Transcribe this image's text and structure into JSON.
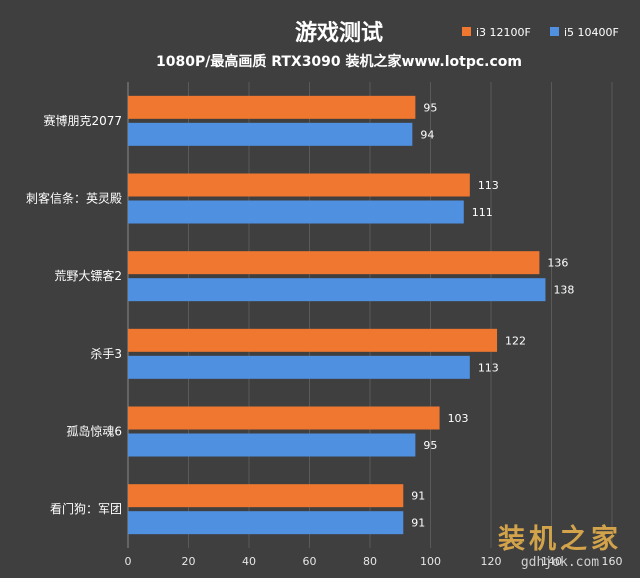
{
  "chart_data": {
    "type": "bar",
    "orientation": "horizontal",
    "title": "游戏测试",
    "subtitle": "1080P/最高画质 RTX3090 装机之家www.lotpc.com",
    "categories": [
      "赛博朋克2077",
      "刺客信条：英灵殿",
      "荒野大镖客2",
      "杀手3",
      "孤岛惊魂6",
      "看门狗：军团"
    ],
    "series": [
      {
        "name": "i3 12100F",
        "color": "#f0772f",
        "values": [
          95,
          113,
          136,
          122,
          103,
          91
        ]
      },
      {
        "name": "i5 10400F",
        "color": "#4f90e0",
        "values": [
          94,
          111,
          138,
          113,
          95,
          91
        ]
      }
    ],
    "xlim": [
      0,
      160
    ],
    "xticks": [
      0,
      20,
      40,
      60,
      80,
      100,
      120,
      140,
      160
    ],
    "grid": true,
    "legend": "top-right"
  },
  "watermark": {
    "text": "装机之家",
    "url": "gdhjok.com"
  }
}
